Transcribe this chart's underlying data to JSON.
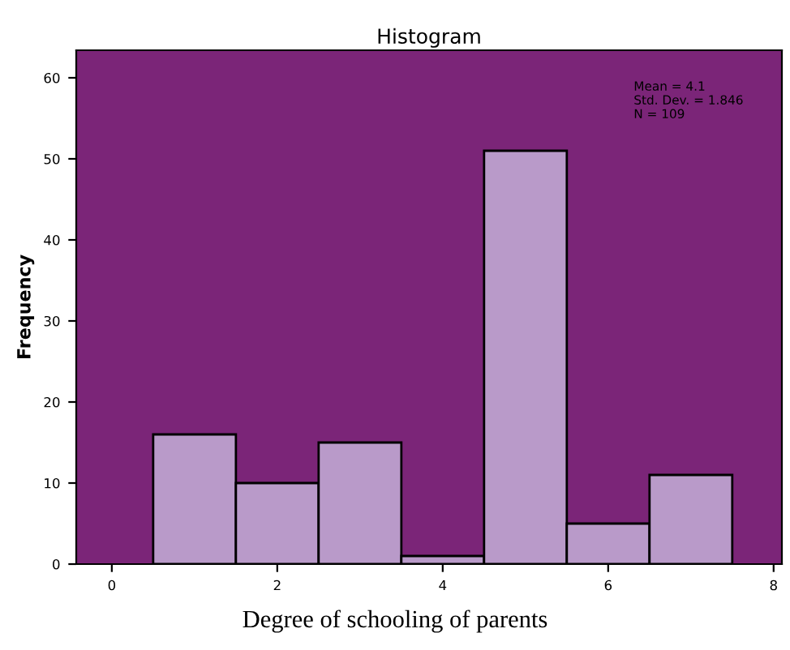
{
  "chart_data": {
    "type": "histogram",
    "title": "Histogram",
    "xlabel": "Degree of schooling of parents",
    "ylabel": "Frequency",
    "bins": [
      0.5,
      1.5,
      2.5,
      3.5,
      4.5,
      5.5,
      6.5,
      7.5
    ],
    "values": [
      16,
      10,
      15,
      1,
      51,
      5,
      11
    ],
    "color": "#b99ac9",
    "xlim": [
      -0.43,
      8.1
    ],
    "xticks": [
      0,
      2,
      4,
      6,
      8
    ],
    "ylim": [
      0,
      63.4
    ],
    "yticks": [
      0,
      10,
      20,
      30,
      40,
      50,
      60
    ],
    "annotations": [
      "Mean = 4.1\nStd. Dev. = 1.846\nN = 109"
    ],
    "grid": false,
    "legend": false
  }
}
